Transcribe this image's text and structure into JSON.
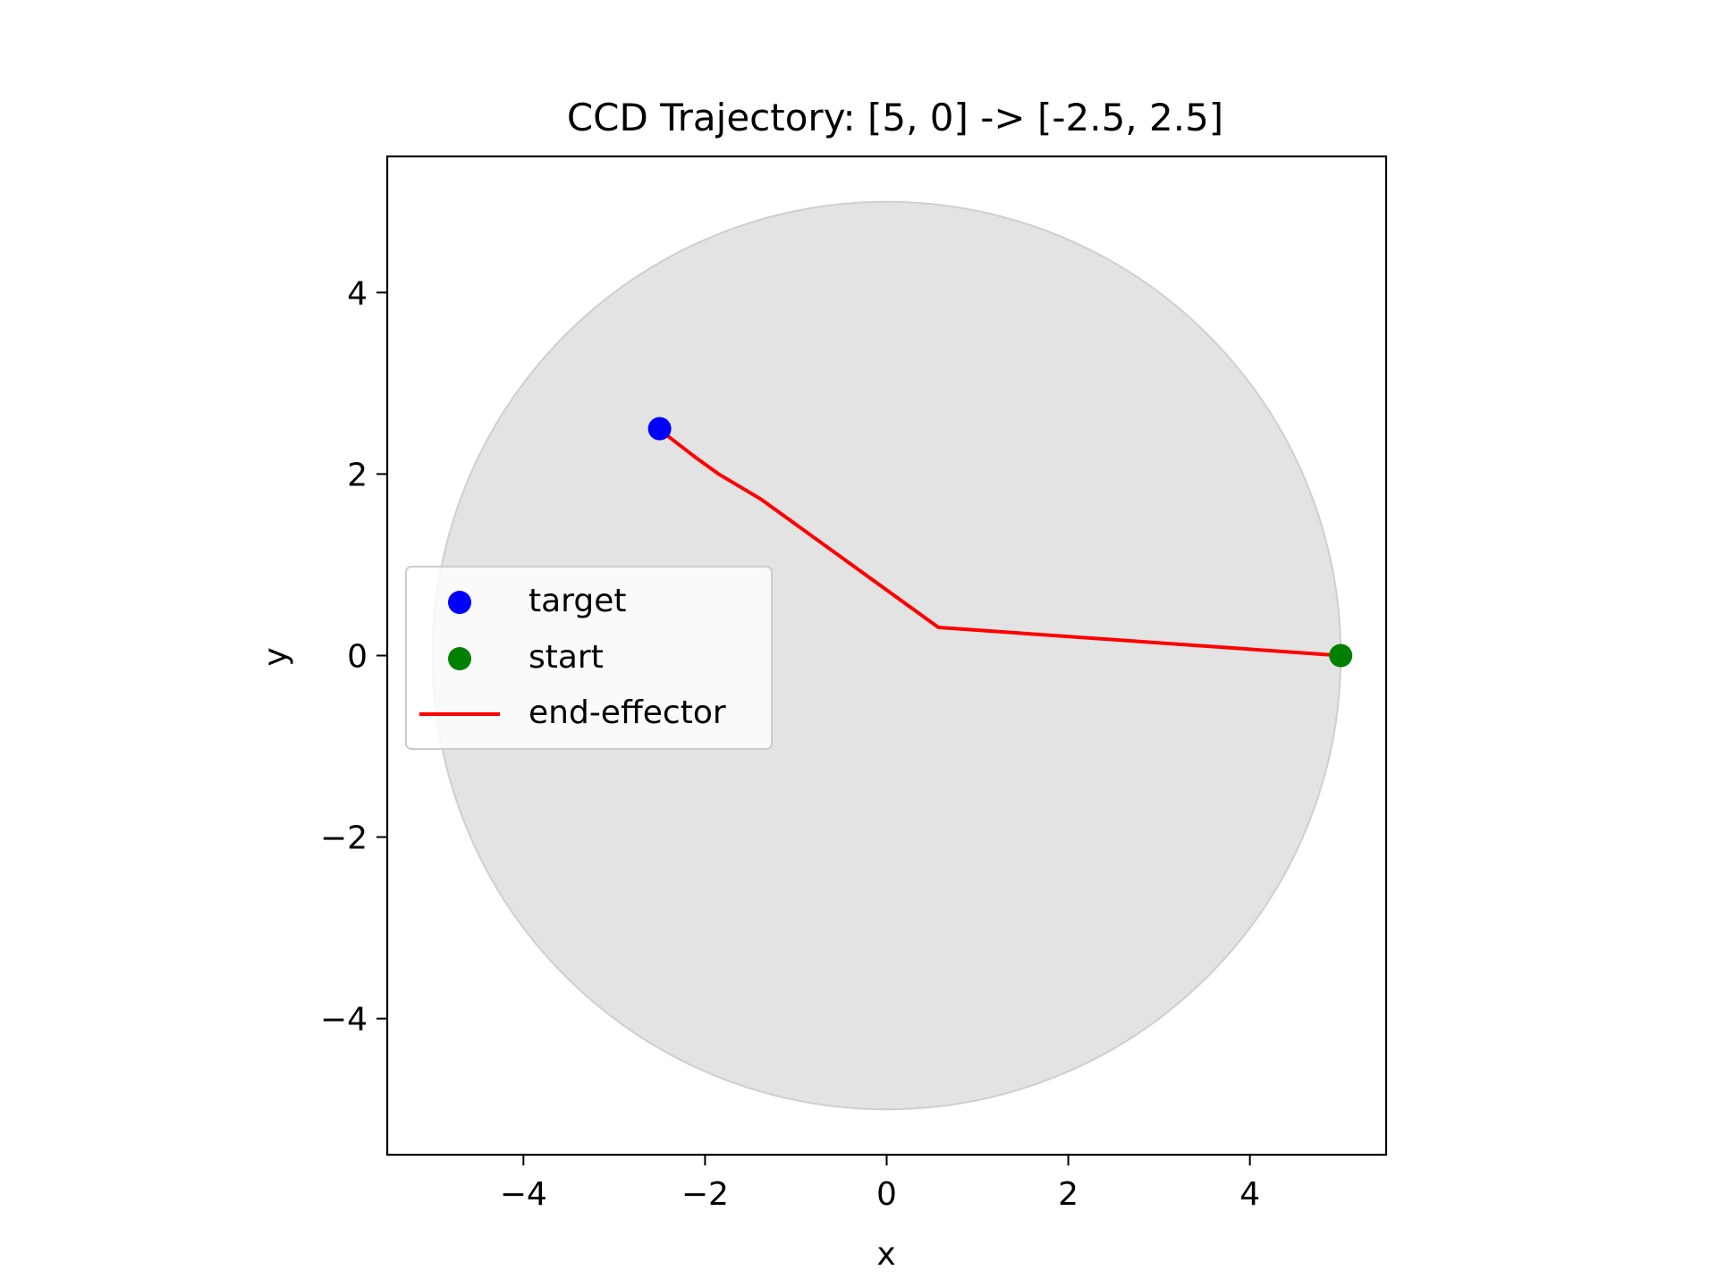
{
  "chart_data": {
    "type": "scatter",
    "title": "CCD Trajectory: [5, 0] -> [-2.5, 2.5]",
    "xlabel": "x",
    "ylabel": "y",
    "xlim": [
      -5.5,
      5.5
    ],
    "ylim": [
      -5.5,
      5.5
    ],
    "xticks": [
      -4,
      -2,
      0,
      2,
      4
    ],
    "yticks": [
      -4,
      -2,
      0,
      2,
      4
    ],
    "xtick_labels": [
      "−4",
      "−2",
      "0",
      "2",
      "4"
    ],
    "ytick_labels": [
      "−4",
      "−2",
      "0",
      "2",
      "4"
    ],
    "grid": false,
    "legend_position": "center-left",
    "workspace_circle": {
      "center": [
        0,
        0
      ],
      "radius": 5,
      "color": "#e3e3e3",
      "edge_color": "#cfcfcf"
    },
    "series": [
      {
        "name": "target",
        "kind": "point",
        "color": "#0000ff",
        "points": [
          [
            -2.5,
            2.5
          ]
        ]
      },
      {
        "name": "start",
        "kind": "point",
        "color": "#008000",
        "points": [
          [
            5.0,
            0.0
          ]
        ]
      },
      {
        "name": "end-effector",
        "kind": "line",
        "color": "#ff0000",
        "points": [
          [
            5.0,
            0.0
          ],
          [
            0.57,
            0.31
          ],
          [
            -1.38,
            1.72
          ],
          [
            -1.85,
            2.0
          ],
          [
            -2.1,
            2.18
          ],
          [
            -2.45,
            2.45
          ]
        ]
      }
    ]
  }
}
